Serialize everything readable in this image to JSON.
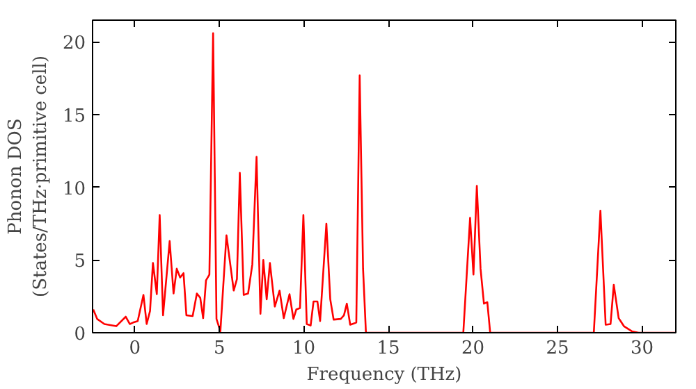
{
  "chart_data": {
    "type": "line",
    "xlabel": "Frequency (THz)",
    "ylabel": "Phonon DOS\n(States/THz·primitive cell)",
    "xlim": [
      -2.5,
      32
    ],
    "ylim": [
      0,
      21.5
    ],
    "xticks": [
      0,
      5,
      10,
      15,
      20,
      25,
      30
    ],
    "yticks": [
      0,
      5,
      10,
      15,
      20
    ],
    "grid": false,
    "marker": "none",
    "line_style": "solid",
    "series": [
      {
        "color": "#ff0000",
        "x": [
          -2.46,
          -2.23,
          -1.8,
          -1.1,
          -0.54,
          -0.3,
          -0.1,
          0.17,
          0.51,
          0.7,
          0.9,
          1.07,
          1.3,
          1.47,
          1.67,
          2.06,
          2.29,
          2.48,
          2.68,
          2.88,
          3.05,
          3.42,
          3.67,
          3.87,
          4.04,
          4.21,
          4.41,
          4.63,
          4.83,
          5.06,
          5.42,
          5.85,
          6.04,
          6.21,
          6.44,
          6.7,
          6.95,
          7.2,
          7.43,
          7.6,
          7.8,
          7.99,
          8.28,
          8.56,
          8.81,
          9.15,
          9.38,
          9.55,
          9.77,
          9.97,
          10.17,
          10.4,
          10.57,
          10.8,
          10.96,
          11.33,
          11.56,
          11.76,
          12.18,
          12.37,
          12.54,
          12.74,
          13.1,
          13.3,
          13.5,
          13.67,
          19.43,
          19.83,
          20.03,
          20.23,
          20.45,
          20.65,
          20.85,
          21.02,
          27.15,
          27.54,
          27.85,
          28.14,
          28.33,
          28.62,
          28.93,
          29.4,
          29.8,
          31.95
        ],
        "values": [
          1.6,
          0.95,
          0.6,
          0.45,
          1.1,
          0.6,
          0.7,
          0.8,
          2.6,
          0.6,
          1.5,
          4.8,
          2.65,
          8.1,
          1.2,
          6.3,
          2.7,
          4.4,
          3.8,
          4.1,
          1.2,
          1.15,
          2.7,
          2.4,
          1.0,
          3.6,
          4.0,
          20.6,
          0.95,
          0.1,
          6.7,
          2.9,
          3.7,
          11.0,
          2.6,
          2.7,
          4.7,
          12.1,
          1.3,
          5.0,
          2.3,
          4.8,
          1.8,
          2.9,
          1.0,
          2.65,
          0.95,
          1.6,
          1.7,
          8.1,
          0.6,
          0.5,
          2.15,
          2.15,
          0.8,
          7.5,
          2.3,
          0.9,
          0.95,
          1.2,
          2.0,
          0.55,
          0.7,
          17.7,
          4.4,
          0,
          0,
          7.9,
          4.0,
          10.1,
          4.4,
          2.0,
          2.1,
          0,
          0,
          8.4,
          0.55,
          0.6,
          3.3,
          1.0,
          0.45,
          0.1,
          0,
          0
        ]
      }
    ]
  }
}
